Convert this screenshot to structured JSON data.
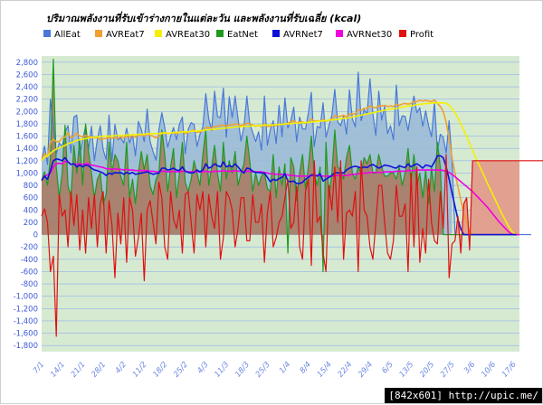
{
  "watermark": "[842x601] http://upic.me/",
  "chart_data": {
    "type": "line",
    "title": "ปริมาณพลังงานที่รับเข้าร่างกายในแต่ละวัน และพลังงานที่รับเฉลี่ย (kcal)",
    "xlabel": "",
    "ylabel": "",
    "ylim": [
      -1900,
      2900
    ],
    "ytick_step": 200,
    "grid": true,
    "legend_position": "top",
    "background_color": "#d6ead2",
    "x_tick_labels": [
      "7/1",
      "14/1",
      "21/1",
      "28/1",
      "4/2",
      "11/2",
      "18/2",
      "25/2",
      "4/3",
      "11/3",
      "18/3",
      "25/3",
      "1/4",
      "8/4",
      "15/4",
      "22/4",
      "29/4",
      "6/5",
      "13/5",
      "20/5",
      "27/5",
      "3/6",
      "10/6",
      "17/6"
    ],
    "days": 164,
    "series": [
      {
        "name": "AllEat",
        "color": "#4a78d8",
        "fill": "#98b8d8",
        "render": "area-line",
        "values": [
          1200,
          1440,
          1140,
          2200,
          1760,
          1310,
          1490,
          1430,
          1660,
          1770,
          1330,
          1910,
          1940,
          1280,
          1540,
          1760,
          1390,
          1760,
          1200,
          1550,
          1770,
          1380,
          1220,
          1940,
          1190,
          1790,
          1540,
          1570,
          1490,
          1730,
          1490,
          1630,
          1280,
          1840,
          1710,
          1510,
          2040,
          1510,
          1350,
          1210,
          1700,
          1980,
          1740,
          1420,
          1600,
          1740,
          1540,
          1790,
          1910,
          1310,
          1710,
          1820,
          1790,
          1430,
          1630,
          1750,
          2290,
          1880,
          1690,
          2330,
          1920,
          1900,
          2380,
          1580,
          2240,
          1900,
          2250,
          1880,
          1520,
          1740,
          2250,
          1800,
          1660,
          1510,
          1670,
          1370,
          2250,
          1450,
          1700,
          1850,
          1480,
          2100,
          1590,
          2220,
          1730,
          1850,
          2070,
          1510,
          1910,
          1720,
          1710,
          1980,
          2310,
          1430,
          1760,
          1730,
          2140,
          1580,
          1770,
          1940,
          2360,
          1830,
          1770,
          1930,
          1630,
          2350,
          1880,
          1750,
          2640,
          1850,
          2030,
          1960,
          2530,
          1960,
          1610,
          2330,
          1860,
          2080,
          1640,
          1770,
          1540,
          2430,
          1770,
          1930,
          1920,
          1690,
          1990,
          2250,
          1980,
          2060,
          1760,
          2010,
          1770,
          1590,
          2150,
          1360,
          1630,
          1580,
          1330,
          1850,
          1210,
          0,
          0,
          0,
          0,
          0,
          0,
          0,
          0,
          0,
          0,
          0,
          0,
          0,
          0,
          0,
          0,
          0,
          0,
          0,
          0,
          0,
          0,
          0,
          0,
          0,
          0,
          0
        ]
      },
      {
        "name": "AVREat7",
        "color": "#f0a030",
        "render": "line",
        "values": [
          1200,
          1320,
          1260,
          1500,
          1550,
          1510,
          1510,
          1570,
          1580,
          1660,
          1570,
          1600,
          1650,
          1600,
          1590,
          1610,
          1590,
          1590,
          1570,
          1580,
          1540,
          1560,
          1560,
          1580,
          1560,
          1580,
          1560,
          1590,
          1570,
          1600,
          1580,
          1610,
          1580,
          1620,
          1620,
          1600,
          1640,
          1610,
          1600,
          1570,
          1600,
          1640,
          1660,
          1640,
          1650,
          1660,
          1640,
          1660,
          1680,
          1640,
          1660,
          1680,
          1700,
          1660,
          1670,
          1690,
          1740,
          1740,
          1730,
          1760,
          1760,
          1770,
          1780,
          1760,
          1780,
          1780,
          1800,
          1790,
          1770,
          1790,
          1810,
          1800,
          1780,
          1760,
          1780,
          1750,
          1800,
          1760,
          1760,
          1780,
          1770,
          1800,
          1780,
          1800,
          1810,
          1830,
          1850,
          1810,
          1830,
          1830,
          1810,
          1830,
          1880,
          1840,
          1850,
          1840,
          1870,
          1840,
          1860,
          1880,
          1930,
          1920,
          1920,
          1940,
          1910,
          1960,
          1960,
          1960,
          2030,
          2020,
          2050,
          2050,
          2090,
          2070,
          2060,
          2090,
          2090,
          2100,
          2080,
          2090,
          2080,
          2120,
          2100,
          2120,
          2130,
          2120,
          2130,
          2160,
          2160,
          2180,
          2170,
          2180,
          2170,
          2160,
          2190,
          2130,
          2080,
          2000,
          1820,
          1560,
          1250,
          1000,
          780,
          560,
          350,
          180,
          50,
          0,
          0,
          0,
          0,
          0,
          0,
          0,
          0,
          0,
          0,
          0,
          0,
          0,
          0,
          0,
          0,
          0
        ]
      },
      {
        "name": "AVREat30",
        "color": "#f4f000",
        "render": "line",
        "values": [
          1200,
          1260,
          1280,
          1320,
          1360,
          1390,
          1410,
          1430,
          1450,
          1480,
          1490,
          1510,
          1530,
          1540,
          1550,
          1560,
          1570,
          1580,
          1580,
          1590,
          1590,
          1600,
          1600,
          1600,
          1600,
          1610,
          1610,
          1610,
          1610,
          1620,
          1620,
          1620,
          1620,
          1630,
          1630,
          1630,
          1640,
          1640,
          1640,
          1640,
          1640,
          1650,
          1650,
          1650,
          1650,
          1660,
          1660,
          1660,
          1670,
          1670,
          1670,
          1680,
          1680,
          1680,
          1690,
          1690,
          1700,
          1700,
          1710,
          1710,
          1720,
          1720,
          1730,
          1730,
          1740,
          1740,
          1750,
          1750,
          1750,
          1760,
          1760,
          1760,
          1770,
          1770,
          1770,
          1770,
          1780,
          1780,
          1780,
          1780,
          1790,
          1790,
          1790,
          1800,
          1800,
          1800,
          1810,
          1810,
          1810,
          1820,
          1820,
          1820,
          1830,
          1830,
          1840,
          1840,
          1850,
          1850,
          1860,
          1860,
          1870,
          1870,
          1880,
          1890,
          1890,
          1900,
          1910,
          1920,
          1930,
          1940,
          1950,
          1960,
          1970,
          1980,
          1990,
          2000,
          2010,
          2020,
          2030,
          2040,
          2040,
          2050,
          2060,
          2070,
          2080,
          2090,
          2090,
          2100,
          2110,
          2120,
          2120,
          2130,
          2130,
          2140,
          2140,
          2140,
          2140,
          2140,
          2130,
          2100,
          2050,
          1980,
          1900,
          1800,
          1700,
          1590,
          1480,
          1370,
          1260,
          1150,
          1050,
          950,
          840,
          740,
          640,
          540,
          440,
          340,
          250,
          160,
          80,
          20,
          0,
          0
        ]
      },
      {
        "name": "EatNet",
        "color": "#1f9a1f",
        "fill": "#a9785e",
        "render": "area-line",
        "values": [
          880,
          1020,
          800,
          1250,
          2850,
          1100,
          600,
          1000,
          1780,
          800,
          600,
          1450,
          1000,
          1550,
          800,
          1800,
          1350,
          1000,
          600,
          900,
          1000,
          500,
          650,
          1500,
          1000,
          1300,
          1200,
          950,
          800,
          1500,
          600,
          900,
          500,
          1000,
          1350,
          1050,
          1300,
          800,
          650,
          900,
          1000,
          1700,
          1300,
          700,
          1100,
          1400,
          600,
          1000,
          1500,
          850,
          700,
          900,
          1200,
          1000,
          800,
          1300,
          1700,
          800,
          1100,
          1450,
          1000,
          700,
          1500,
          900,
          1200,
          1000,
          1350,
          800,
          1000,
          1150,
          1600,
          1200,
          700,
          1000,
          800,
          950,
          1000,
          750,
          700,
          1300,
          600,
          1100,
          800,
          1150,
          -300,
          1250,
          1100,
          550,
          1000,
          1300,
          750,
          1100,
          1600,
          1000,
          800,
          1100,
          -600,
          1500,
          600,
          1000,
          1700,
          1100,
          1050,
          900,
          1250,
          1450,
          1000,
          900,
          1100,
          1000,
          1250,
          1150,
          1300,
          1000,
          1000,
          1300,
          1100,
          950,
          950,
          1000,
          1000,
          900,
          1100,
          800,
          1000,
          1400,
          850,
          1300,
          800,
          1000,
          600,
          1050,
          500,
          1100,
          700,
          1500,
          1100,
          0,
          0,
          0,
          0,
          0,
          0,
          0,
          0,
          0,
          0,
          0,
          0,
          0,
          0,
          0,
          0,
          0,
          0,
          0,
          0,
          0,
          0,
          0,
          0,
          0,
          0,
          0
        ]
      },
      {
        "name": "AVRNet7",
        "color": "#1010d8",
        "render": "line",
        "values": [
          880,
          950,
          900,
          1040,
          1200,
          1230,
          1220,
          1200,
          1250,
          1180,
          1140,
          1150,
          1100,
          1130,
          1100,
          1130,
          1120,
          1080,
          1050,
          1040,
          1020,
          1000,
          960,
          1000,
          980,
          1010,
          1000,
          1010,
          980,
          1010,
          990,
          1010,
          980,
          990,
          1000,
          1010,
          1020,
          1000,
          980,
          990,
          1000,
          1080,
          1080,
          1050,
          1060,
          1080,
          1050,
          1040,
          1100,
          1030,
          1010,
          1000,
          1010,
          1050,
          1020,
          1050,
          1150,
          1080,
          1100,
          1150,
          1120,
          1100,
          1180,
          1100,
          1120,
          1100,
          1150,
          1100,
          1040,
          1000,
          1080,
          1070,
          1030,
          1010,
          1010,
          1000,
          1000,
          930,
          860,
          900,
          880,
          910,
          930,
          990,
          870,
          860,
          870,
          830,
          830,
          850,
          900,
          930,
          970,
          970,
          950,
          990,
          870,
          900,
          930,
          960,
          1010,
          1000,
          1010,
          1000,
          1050,
          1080,
          1100,
          1110,
          1100,
          1080,
          1100,
          1090,
          1120,
          1140,
          1110,
          1080,
          1100,
          1130,
          1120,
          1110,
          1090,
          1080,
          1120,
          1100,
          1090,
          1150,
          1100,
          1130,
          1150,
          1120,
          1080,
          1130,
          1120,
          1100,
          1180,
          1280,
          1280,
          1250,
          1100,
          900,
          680,
          460,
          250,
          90,
          0,
          0,
          0,
          0,
          0,
          0,
          0,
          0,
          0,
          0,
          0,
          0,
          0,
          0,
          0,
          0,
          0,
          0,
          0
        ]
      },
      {
        "name": "AVRNet30",
        "color": "#f000e0",
        "render": "line",
        "values": [
          880,
          950,
          970,
          1000,
          1100,
          1150,
          1160,
          1150,
          1190,
          1180,
          1140,
          1150,
          1140,
          1150,
          1140,
          1150,
          1150,
          1130,
          1120,
          1110,
          1100,
          1090,
          1070,
          1070,
          1060,
          1070,
          1060,
          1060,
          1050,
          1060,
          1050,
          1050,
          1040,
          1040,
          1040,
          1040,
          1040,
          1030,
          1030,
          1020,
          1020,
          1030,
          1030,
          1020,
          1020,
          1030,
          1020,
          1020,
          1030,
          1030,
          1020,
          1020,
          1020,
          1020,
          1020,
          1020,
          1030,
          1020,
          1020,
          1030,
          1030,
          1030,
          1040,
          1030,
          1030,
          1030,
          1040,
          1030,
          1030,
          1020,
          1030,
          1030,
          1020,
          1020,
          1020,
          1020,
          1010,
          1000,
          990,
          990,
          980,
          980,
          980,
          980,
          970,
          960,
          960,
          950,
          950,
          950,
          950,
          950,
          960,
          960,
          960,
          960,
          950,
          950,
          950,
          950,
          960,
          960,
          960,
          960,
          960,
          970,
          980,
          980,
          990,
          990,
          1000,
          1000,
          1010,
          1010,
          1010,
          1010,
          1010,
          1020,
          1020,
          1020,
          1020,
          1030,
          1030,
          1030,
          1030,
          1040,
          1040,
          1040,
          1050,
          1050,
          1050,
          1050,
          1050,
          1050,
          1050,
          1050,
          1050,
          1040,
          1030,
          1010,
          980,
          940,
          900,
          860,
          820,
          780,
          740,
          700,
          650,
          600,
          550,
          500,
          450,
          390,
          330,
          270,
          210,
          160,
          110,
          60,
          20,
          0,
          0,
          0
        ]
      },
      {
        "name": "Profit",
        "color": "#e01010",
        "fill": "#e2a090",
        "render": "profit",
        "values": [
          300,
          420,
          200,
          -600,
          -350,
          -1650,
          650,
          300,
          400,
          -200,
          700,
          150,
          650,
          -250,
          400,
          -300,
          600,
          100,
          650,
          -200,
          500,
          700,
          -300,
          550,
          150,
          -700,
          350,
          -150,
          600,
          -450,
          600,
          400,
          -350,
          -50,
          350,
          -750,
          400,
          550,
          200,
          -150,
          850,
          600,
          -200,
          -400,
          700,
          250,
          100,
          400,
          -300,
          650,
          700,
          200,
          -300,
          650,
          400,
          700,
          -200,
          650,
          300,
          100,
          700,
          -400,
          -50,
          700,
          600,
          400,
          -200,
          100,
          600,
          600,
          -100,
          -100,
          650,
          200,
          200,
          500,
          -450,
          350,
          700,
          -200,
          -50,
          200,
          300,
          600,
          900,
          100,
          200,
          800,
          -200,
          -400,
          700,
          900,
          -500,
          1200,
          200,
          300,
          -300,
          -600,
          800,
          400,
          1100,
          200,
          1200,
          -400,
          350,
          400,
          300,
          700,
          -600,
          1200,
          400,
          300,
          -200,
          -400,
          200,
          800,
          800,
          200,
          -300,
          -400,
          -100,
          800,
          300,
          300,
          500,
          -600,
          1000,
          -200,
          1100,
          -450,
          100,
          -300,
          900,
          200,
          -100,
          -150,
          700,
          100,
          1300,
          -700,
          -150,
          -100,
          300,
          -300,
          500,
          600,
          -250,
          1200,
          1200,
          1200,
          1200,
          1200,
          1200,
          1200,
          1200,
          1200,
          1200,
          1200,
          1200,
          1200,
          1200,
          1200,
          1200,
          1200,
          1200,
          1200,
          1200,
          1200,
          1200,
          1200,
          1200,
          1200,
          1200
        ]
      }
    ]
  }
}
